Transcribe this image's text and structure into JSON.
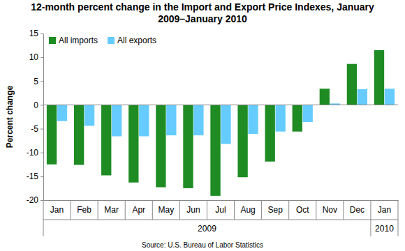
{
  "chart_data": {
    "type": "bar",
    "title": "12-month percent change in the Import and Export Price Indexes, January 2009–January 2010",
    "y_label": "Percent change",
    "source": "Source: U.S. Bureau of Labor Statistics",
    "categories": [
      "Jan",
      "Feb",
      "Mar",
      "Apr",
      "May",
      "Jun",
      "Jul",
      "Aug",
      "Sep",
      "Oct",
      "Nov",
      "Dec",
      "Jan"
    ],
    "x_groups": [
      {
        "label": "2009",
        "count": 12
      },
      {
        "label": "2010",
        "count": 1
      }
    ],
    "series": [
      {
        "name": "All imports",
        "color": "#1e8c23",
        "values": [
          -12.5,
          -12.6,
          -14.8,
          -16.3,
          -17.3,
          -17.5,
          -19.1,
          -15.2,
          -11.9,
          -5.6,
          3.4,
          8.6,
          11.5
        ]
      },
      {
        "name": "All exports",
        "color": "#66ccff",
        "values": [
          -3.4,
          -4.4,
          -6.6,
          -6.6,
          -6.4,
          -6.4,
          -8.2,
          -6.1,
          -5.6,
          -3.6,
          0.3,
          3.3,
          3.4
        ]
      }
    ],
    "ylim": [
      -20,
      15
    ],
    "yticks": [
      -20,
      -15,
      -10,
      -5,
      0,
      5,
      10,
      15
    ],
    "grid": false,
    "legend": "upper left"
  }
}
